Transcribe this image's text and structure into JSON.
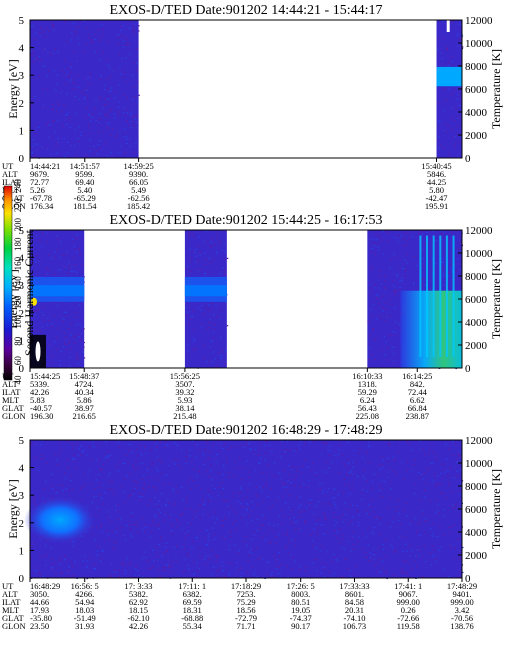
{
  "chart_data": [
    {
      "type": "heatmap",
      "title": "EXOS-D/TED   Date:901202  14:44:21 - 15:44:17",
      "ylabel": "Energy [eV]",
      "ylim": [
        0,
        5
      ],
      "y_ticks": [
        "0",
        "1",
        "2",
        "3",
        "4",
        "5"
      ],
      "right_label": "Temperature [K]",
      "right_ylim": [
        0,
        12000
      ],
      "right_ticks": [
        "0",
        "2000",
        "4000",
        "6000",
        "8000",
        "10000",
        "12000"
      ],
      "data_intervals": [
        [
          "14:44:21",
          "14:59:25"
        ],
        [
          "15:40:45",
          "15:44:17"
        ]
      ],
      "orbit_table": {
        "row_labels": [
          "UT",
          "ALT",
          "ILAT",
          "MLT",
          "GLAT",
          "GLON"
        ],
        "columns": [
          [
            "14:44:21",
            "9679.",
            "72.77",
            "5.26",
            "-67.78",
            "176.34"
          ],
          [
            "14:51:57",
            "9599.",
            "69.40",
            "5.40",
            "-65.29",
            "181.54"
          ],
          [
            "14:59:25",
            "9390.",
            "66.05",
            "5.49",
            "-62.56",
            "185.42"
          ],
          [
            "15:40:45",
            "5846.",
            "44.25",
            "5.80",
            "-42.47",
            "195.91"
          ]
        ]
      }
    },
    {
      "type": "heatmap",
      "title": "EXOS-D/TED   Date:901202  15:44:25 - 16:17:53",
      "ylabel": "Energy [eV]",
      "ylim": [
        0,
        5
      ],
      "y_ticks": [
        "0",
        "1",
        "2",
        "3",
        "4",
        "5"
      ],
      "right_label": "Temperature [K]",
      "right_ylim": [
        0,
        12000
      ],
      "right_ticks": [
        "0",
        "2000",
        "4000",
        "6000",
        "8000",
        "10000",
        "12000"
      ],
      "data_intervals": [
        [
          "15:44:25",
          "15:48:37"
        ],
        [
          "15:56:25",
          "15:59:40"
        ],
        [
          "16:10:33",
          "16:17:53"
        ]
      ],
      "orbit_table": {
        "row_labels": [
          "UT",
          "ALT",
          "ILAT",
          "MLT",
          "GLAT",
          "GLON"
        ],
        "columns": [
          [
            "15:44:25",
            "5339.",
            "42.26",
            "5.83",
            "-40.57",
            "196.30"
          ],
          [
            "15:48:37",
            "4724.",
            "40.34",
            "5.86",
            "38.97",
            "216.65"
          ],
          [
            "15:56:25",
            "3507.",
            "39.32",
            "5.93",
            "38.14",
            "215.48"
          ],
          [
            "16:10:33",
            "1318.",
            "59.29",
            "6.24",
            "56.43",
            "225.08"
          ],
          [
            "16:14:25",
            "842.",
            "72.44",
            "6.62",
            "66.84",
            "238.87"
          ]
        ]
      }
    },
    {
      "type": "heatmap",
      "title": "EXOS-D/TED   Date:901202  16:48:29 - 17:48:29",
      "ylabel": "Energy [eV]",
      "ylim": [
        0,
        5
      ],
      "y_ticks": [
        "0",
        "1",
        "2",
        "3",
        "4",
        "5"
      ],
      "right_label": "Temperature [K]",
      "right_ylim": [
        0,
        12000
      ],
      "right_ticks": [
        "0",
        "2000",
        "4000",
        "6000",
        "8000",
        "10000",
        "12000"
      ],
      "data_intervals": [
        [
          "16:48:29",
          "17:48:29"
        ]
      ],
      "orbit_table": {
        "row_labels": [
          "UT",
          "ALT",
          "ILAT",
          "MLT",
          "GLAT",
          "GLON"
        ],
        "columns": [
          [
            "16:48:29",
            "3050.",
            "44.66",
            "17.93",
            "-35.80",
            "23.50"
          ],
          [
            "16:56: 5",
            "4266.",
            "54.94",
            "18.03",
            "-51.49",
            "31.93"
          ],
          [
            "17: 3:33",
            "5382.",
            "62.92",
            "18.15",
            "-62.10",
            "42.26"
          ],
          [
            "17:11: 1",
            "6382.",
            "69.59",
            "18.31",
            "-68.88",
            "55.34"
          ],
          [
            "17:18:29",
            "7253.",
            "75.29",
            "18.56",
            "-72.79",
            "71.71"
          ],
          [
            "17:26: 5",
            "8003.",
            "80.51",
            "19.05",
            "-74.37",
            "90.17"
          ],
          [
            "17:33:33",
            "8601.",
            "84.58",
            "20.31",
            "-74.10",
            "106.73"
          ],
          [
            "17:41: 1",
            "9067.",
            "999.00",
            "0.26",
            "-72.66",
            "119.58"
          ],
          [
            "17:48:29",
            "9401.",
            "999.00",
            "3.42",
            "-70.56",
            "138.76"
          ]
        ]
      }
    }
  ],
  "colorbar": {
    "label": "Second Harmonic Current",
    "ticks": [
      "40",
      "60",
      "80",
      "100",
      "120",
      "140",
      "160",
      "180",
      "200",
      "220",
      "240"
    ]
  }
}
